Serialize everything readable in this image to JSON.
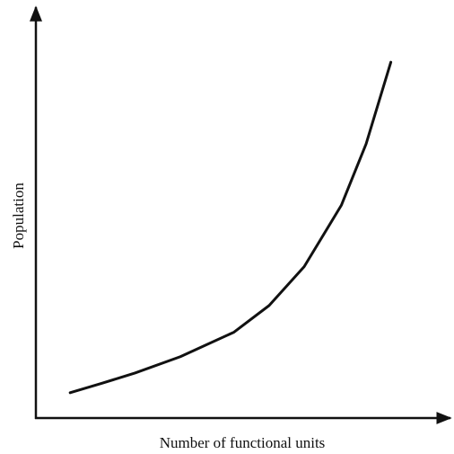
{
  "chart_data": {
    "type": "line",
    "xlabel": "Number of functional units",
    "ylabel": "Population",
    "x": [
      8.3,
      16,
      24,
      35,
      48,
      56.5,
      65,
      74,
      80,
      86
    ],
    "series": [
      {
        "color": "#111111",
        "values": [
          6.2,
          8.5,
          11,
          15,
          21,
          27.5,
          37,
          52,
          67,
          87
        ]
      }
    ],
    "xlim": [
      0,
      100
    ],
    "ylim": [
      0,
      100
    ]
  }
}
